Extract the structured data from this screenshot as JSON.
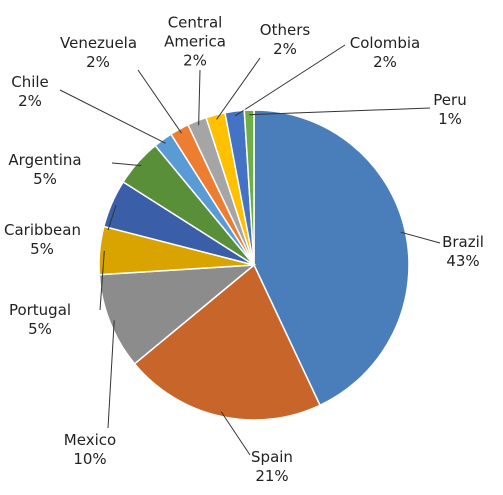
{
  "chart_data": {
    "type": "pie",
    "categories": [
      "Brazil",
      "Spain",
      "Mexico",
      "Portugal",
      "Caribbean",
      "Argentina",
      "Chile",
      "Venezuela",
      "Central America",
      "Others",
      "Colombia",
      "Peru"
    ],
    "values": [
      43,
      21,
      10,
      5,
      5,
      5,
      2,
      2,
      2,
      2,
      2,
      1
    ],
    "value_labels": [
      "43%",
      "21%",
      "10%",
      "5%",
      "5%",
      "5%",
      "2%",
      "2%",
      "2%",
      "2%",
      "2%",
      "1%"
    ],
    "colors": [
      "#4a7ebb",
      "#c8652a",
      "#8c8c8c",
      "#d9a400",
      "#3a5ea8",
      "#5a8f3a",
      "#5b9bd5",
      "#ed7d31",
      "#a5a5a5",
      "#ffc000",
      "#4472c4",
      "#70ad47"
    ]
  }
}
